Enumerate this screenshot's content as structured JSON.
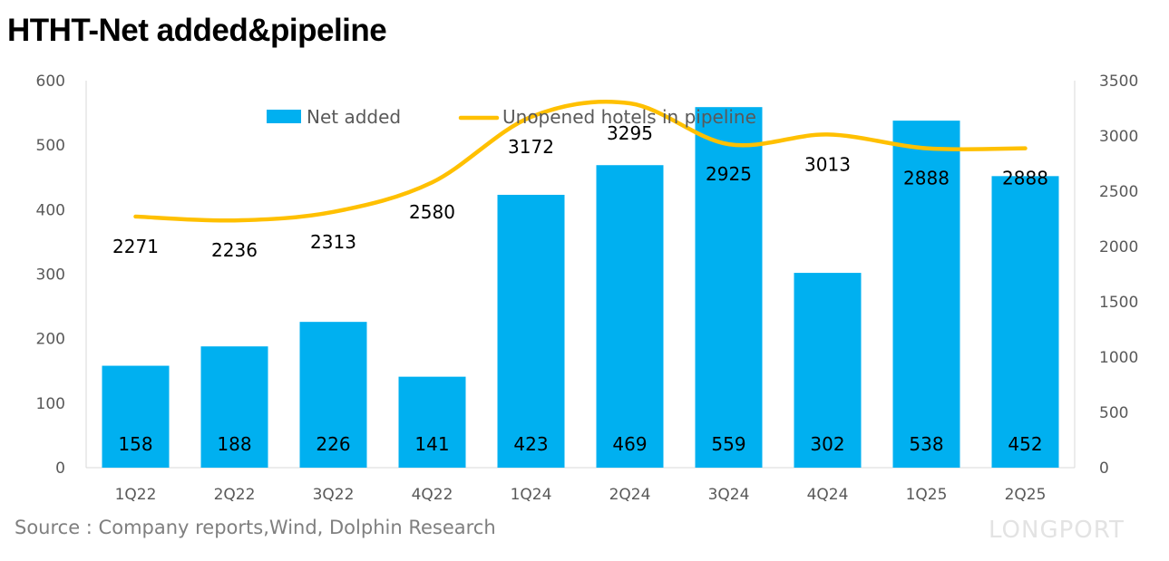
{
  "title": "HTHT-Net added&pipeline",
  "source": "Source : Company reports,Wind, Dolphin Research",
  "logo_text": "LONGPORT",
  "chart_data": {
    "type": "bar+line",
    "title": "HTHT-Net added&pipeline",
    "categories": [
      "1Q22",
      "2Q22",
      "3Q22",
      "4Q22",
      "1Q24",
      "2Q24",
      "3Q24",
      "4Q24",
      "1Q25",
      "2Q25"
    ],
    "series": [
      {
        "name": "Net added",
        "type": "bar",
        "axis": "left",
        "color": "#00B0F0",
        "values": [
          158,
          188,
          226,
          141,
          423,
          469,
          559,
          302,
          538,
          452
        ]
      },
      {
        "name": "Unopened hotels in pipeline",
        "type": "line",
        "axis": "right",
        "color": "#FFC000",
        "values": [
          2271,
          2236,
          2313,
          2580,
          3172,
          3295,
          2925,
          3013,
          2888,
          2888
        ]
      }
    ],
    "y_left": {
      "range": [
        0,
        600
      ],
      "ticks": [
        "0",
        "100",
        "200",
        "300",
        "400",
        "500",
        "600"
      ]
    },
    "y_right": {
      "range": [
        0,
        3500
      ],
      "ticks": [
        "0",
        "500",
        "1000",
        "1500",
        "2000",
        "2500",
        "3000",
        "3500"
      ]
    },
    "grid": false,
    "legend": "top"
  }
}
